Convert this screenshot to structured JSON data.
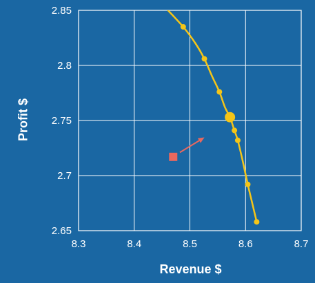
{
  "colors": {
    "background": "#1a67a3",
    "grid": "#ffffff",
    "curve": "#f5c518",
    "current_point": "#f5c518",
    "alternative_point": "#e8685f",
    "arrow": "#e8685f",
    "text": "#ffffff"
  },
  "chart_data": {
    "type": "scatter",
    "title": "",
    "xlabel": "Revenue $",
    "ylabel": "Profit $",
    "xlim": [
      8.3,
      8.7
    ],
    "ylim": [
      2.65,
      2.85
    ],
    "x_ticks": [
      8.3,
      8.4,
      8.5,
      8.6,
      8.7
    ],
    "x_tick_labels": [
      "8.3",
      "8.4",
      "8.5",
      "8.6",
      "8.7"
    ],
    "y_ticks": [
      2.65,
      2.7,
      2.75,
      2.8,
      2.85
    ],
    "y_tick_labels": [
      "2.65",
      "2.7",
      "2.75",
      "2.8",
      "2.85"
    ],
    "grid": true,
    "frontier_curve": [
      [
        8.455,
        2.853
      ],
      [
        8.488,
        2.835
      ],
      [
        8.51,
        2.82
      ],
      [
        8.526,
        2.806
      ],
      [
        8.54,
        2.79
      ],
      [
        8.553,
        2.776
      ],
      [
        8.563,
        2.762
      ],
      [
        8.572,
        2.753
      ],
      [
        8.58,
        2.741
      ],
      [
        8.586,
        2.732
      ],
      [
        8.595,
        2.713
      ],
      [
        8.604,
        2.692
      ],
      [
        8.612,
        2.675
      ],
      [
        8.62,
        2.658
      ]
    ],
    "frontier_points": [
      {
        "x": 8.488,
        "y": 2.835
      },
      {
        "x": 8.526,
        "y": 2.806
      },
      {
        "x": 8.553,
        "y": 2.776
      },
      {
        "x": 8.58,
        "y": 2.741
      },
      {
        "x": 8.586,
        "y": 2.732
      },
      {
        "x": 8.604,
        "y": 2.692
      },
      {
        "x": 8.62,
        "y": 2.658
      }
    ],
    "highlight_point": {
      "x": 8.572,
      "y": 2.753
    },
    "alternative_point": {
      "x": 8.47,
      "y": 2.717
    },
    "arrow": {
      "from": {
        "x": 8.482,
        "y": 2.721
      },
      "to": {
        "x": 8.524,
        "y": 2.734
      }
    }
  }
}
